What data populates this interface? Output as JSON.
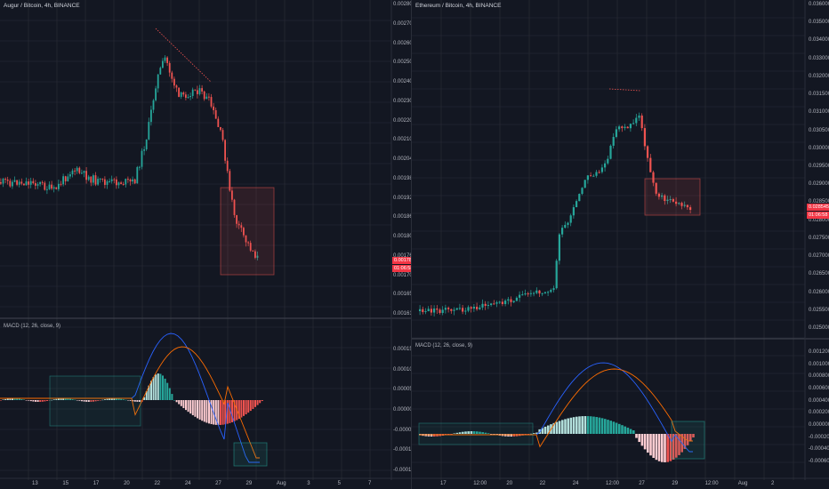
{
  "left_chart": {
    "title": "Augur / Bitcoin, 4h, BINANCE",
    "price_axis": [
      "0.002800",
      "0.002700",
      "0.002600",
      "0.002500",
      "0.002400",
      "0.002300",
      "0.002200",
      "0.002100",
      "0.002040",
      "0.001980",
      "0.001920",
      "0.001860",
      "0.001800",
      "0.001760",
      "0.001700",
      "0.001655",
      "0.001610"
    ],
    "last_price": "0.001784",
    "countdown": "01:06:58",
    "indicator_title": "MACD (12, 26, close, 9)",
    "indicator_axis": [
      "0.000150",
      "0.000100",
      "0.000050",
      "0.000000",
      "-0.000050",
      "-0.000100",
      "-0.000150"
    ],
    "time_axis": [
      "13",
      "15",
      "17",
      "20",
      "22",
      "24",
      "27",
      "29",
      "Aug",
      "3",
      "5",
      "7"
    ]
  },
  "right_chart": {
    "title": "Ethereum / Bitcoin, 4h, BINANCE",
    "price_axis": [
      "0.036000",
      "0.035000",
      "0.034000",
      "0.033000",
      "0.032000",
      "0.031500",
      "0.031000",
      "0.030500",
      "0.030000",
      "0.029500",
      "0.029000",
      "0.028500",
      "0.028000",
      "0.027500",
      "0.027000",
      "0.026500",
      "0.026000",
      "0.025500",
      "0.025000"
    ],
    "last_price": "0.028545",
    "countdown": "01:06:58",
    "indicator_title": "MACD (12, 26, close, 9)",
    "indicator_axis": [
      "0.001200",
      "0.001000",
      "0.000800",
      "0.000600",
      "0.000400",
      "0.000200",
      "0.000000",
      "-0.000200",
      "-0.000400",
      "-0.000600"
    ],
    "time_axis": [
      "17",
      "12:00",
      "20",
      "22",
      "24",
      "12:00",
      "27",
      "29",
      "12:00",
      "Aug",
      "2"
    ]
  },
  "colors": {
    "up": "#26a69a",
    "down": "#ef5350",
    "macd": "#2962ff",
    "signal": "#ff6d00",
    "background": "#131722",
    "grid": "#2a2e39"
  }
}
